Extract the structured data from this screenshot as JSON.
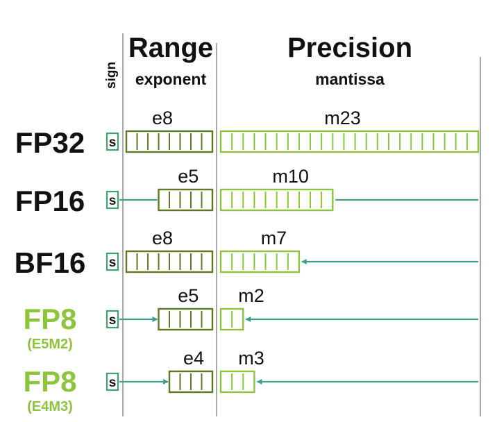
{
  "header": {
    "sign_label": "sign",
    "range_title": "Range",
    "range_subtitle": "exponent",
    "precision_title": "Precision",
    "precision_subtitle": "mantissa"
  },
  "sign_glyph": "s",
  "colors": {
    "exponent_box": "#5d7a22",
    "mantissa_box": "#8cc43c",
    "sign_box": "#3fa46a",
    "arrow": "#3f9e8f",
    "divider": "#a8a8a8",
    "label_black": "#111111",
    "label_green": "#8cc43c"
  },
  "formats": [
    {
      "name": "FP32",
      "subname": "",
      "highlight": false,
      "exponent_label": "e8",
      "exponent_bits": 8,
      "mantissa_label": "m23",
      "mantissa_bits": 23
    },
    {
      "name": "FP16",
      "subname": "",
      "highlight": false,
      "exponent_label": "e5",
      "exponent_bits": 5,
      "mantissa_label": "m10",
      "mantissa_bits": 10
    },
    {
      "name": "BF16",
      "subname": "",
      "highlight": false,
      "exponent_label": "e8",
      "exponent_bits": 8,
      "mantissa_label": "m7",
      "mantissa_bits": 7
    },
    {
      "name": "FP8",
      "subname": "(E5M2)",
      "highlight": true,
      "exponent_label": "e5",
      "exponent_bits": 5,
      "mantissa_label": "m2",
      "mantissa_bits": 2
    },
    {
      "name": "FP8",
      "subname": "(E4M3)",
      "highlight": true,
      "exponent_label": "e4",
      "exponent_bits": 4,
      "mantissa_label": "m3",
      "mantissa_bits": 3
    }
  ]
}
